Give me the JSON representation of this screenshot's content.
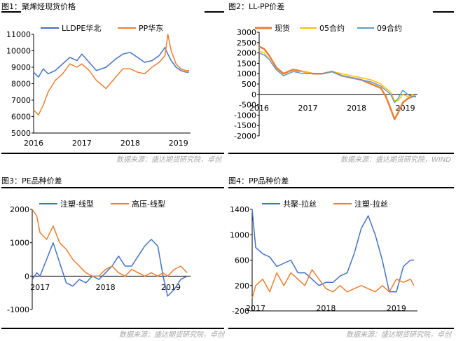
{
  "colors": {
    "blue": "#4472C4",
    "orange": "#ED7D31",
    "lightblue": "#5B9BD5",
    "yellow": "#FFC000",
    "rule": "#000000",
    "source": "#A6A6A6",
    "axis": "#000000"
  },
  "panels": [
    {
      "title": "图1：聚烯烃现货价格",
      "source": "数据来源：盛达期货研究院，卓创",
      "legend": [
        "LLDPE华北",
        "PP华东"
      ],
      "yticks": [
        "11000",
        "10000",
        "9000",
        "8000",
        "7000",
        "6000",
        "5000"
      ],
      "xticks": [
        "2016",
        "2017",
        "2018",
        "2019"
      ]
    },
    {
      "title": "图2：LL-PP价差",
      "source": "数据来源：盛达期货研究院，WIND",
      "legend": [
        "现货",
        "05合约",
        "09合约"
      ],
      "yticks": [
        "3000",
        "2500",
        "2000",
        "1500",
        "1000",
        "500",
        "0",
        "-500",
        "-1000",
        "-1500",
        "-2000"
      ],
      "xticks": [
        "2016",
        "2017",
        "2018",
        "2019"
      ]
    },
    {
      "title": "图3：PE品种价差",
      "source": "数据来源：盛达期货研究院，卓创",
      "legend": [
        "注塑-线型",
        "高压-线型"
      ],
      "yticks": [
        "2000",
        "1000",
        "0",
        "-1000"
      ],
      "xticks": [
        "2017",
        "2018",
        "2019"
      ]
    },
    {
      "title": "图4：PP品种价差",
      "source": "数据来源：盛达期货研究院，卓创",
      "legend": [
        "共聚-拉丝",
        "注塑-拉丝"
      ],
      "yticks": [
        "1400",
        "1000",
        "600",
        "200",
        "-200"
      ],
      "xticks": [
        "2017",
        "2018",
        "2019"
      ]
    }
  ],
  "chart_data": [
    {
      "type": "line",
      "title": "图1：聚烯烃现货价格",
      "ylim": [
        5000,
        11000
      ],
      "xlim": [
        2016.0,
        2019.25
      ],
      "x": [
        2016.0,
        2016.1,
        2016.2,
        2016.3,
        2016.45,
        2016.6,
        2016.75,
        2016.9,
        2017.0,
        2017.15,
        2017.3,
        2017.5,
        2017.7,
        2017.85,
        2018.0,
        2018.15,
        2018.3,
        2018.45,
        2018.6,
        2018.72,
        2018.78,
        2018.85,
        2018.95,
        2019.05,
        2019.15,
        2019.22
      ],
      "series": [
        {
          "name": "LLDPE华北",
          "color": "#4472C4",
          "values": [
            8700,
            8400,
            8900,
            8600,
            8800,
            9200,
            9600,
            9400,
            9800,
            9300,
            8800,
            9000,
            9500,
            9800,
            9900,
            9600,
            9300,
            9400,
            9700,
            10200,
            9800,
            9400,
            9000,
            8800,
            8700,
            8700
          ]
        },
        {
          "name": "PP华东",
          "color": "#ED7D31",
          "values": [
            6400,
            6100,
            6700,
            7500,
            8200,
            8600,
            9200,
            9000,
            9200,
            8800,
            8200,
            7700,
            8400,
            8900,
            8900,
            8700,
            8600,
            9000,
            9300,
            9700,
            11000,
            10000,
            9200,
            8900,
            8800,
            8800
          ]
        }
      ]
    },
    {
      "type": "line",
      "title": "图2：LL-PP价差",
      "ylim": [
        -2000,
        3000
      ],
      "xlim": [
        2016.0,
        2019.25
      ],
      "x": [
        2016.0,
        2016.1,
        2016.2,
        2016.35,
        2016.5,
        2016.7,
        2016.9,
        2017.1,
        2017.3,
        2017.5,
        2017.7,
        2017.9,
        2018.1,
        2018.3,
        2018.5,
        2018.6,
        2018.7,
        2018.78,
        2018.85,
        2018.95,
        2019.05,
        2019.15,
        2019.22
      ],
      "series": [
        {
          "name": "现货",
          "color": "#ED7D31",
          "values": [
            2300,
            2200,
            1900,
            1300,
            1000,
            1200,
            1100,
            1000,
            1000,
            1100,
            900,
            800,
            700,
            500,
            300,
            -100,
            -700,
            -1200,
            -900,
            -400,
            -200,
            -100,
            -100
          ]
        },
        {
          "name": "05合约",
          "color": "#FFC000",
          "values": [
            2100,
            2000,
            1700,
            1200,
            900,
            1100,
            1100,
            1000,
            1000,
            1100,
            1000,
            900,
            800,
            700,
            500,
            300,
            100,
            -300,
            -300,
            0,
            -100,
            0,
            -100
          ]
        },
        {
          "name": "09合约",
          "color": "#5B9BD5",
          "values": [
            2000,
            1900,
            1700,
            1200,
            900,
            1100,
            1000,
            1000,
            1000,
            1100,
            900,
            800,
            700,
            600,
            400,
            200,
            0,
            -400,
            -200,
            200,
            0,
            -100,
            -100
          ]
        }
      ]
    },
    {
      "type": "line",
      "title": "图3：PE品种价差",
      "ylim": [
        -1000,
        2000
      ],
      "xlim": [
        2016.88,
        2019.3
      ],
      "x": [
        2016.88,
        2016.95,
        2017.0,
        2017.1,
        2017.2,
        2017.3,
        2017.4,
        2017.5,
        2017.6,
        2017.7,
        2017.8,
        2017.9,
        2018.0,
        2018.1,
        2018.2,
        2018.3,
        2018.4,
        2018.5,
        2018.6,
        2018.7,
        2018.8,
        2018.88,
        2018.95,
        2019.05,
        2019.15,
        2019.25
      ],
      "series": [
        {
          "name": "注塑-线型",
          "color": "#4472C4",
          "values": [
            -100,
            100,
            0,
            500,
            1000,
            400,
            -200,
            -300,
            -100,
            -200,
            0,
            -100,
            100,
            300,
            600,
            300,
            300,
            600,
            900,
            1100,
            900,
            0,
            -600,
            -400,
            -100,
            0
          ]
        },
        {
          "name": "高压-线型",
          "color": "#ED7D31",
          "values": [
            2000,
            1800,
            1300,
            1100,
            1500,
            1000,
            800,
            500,
            300,
            100,
            0,
            0,
            200,
            300,
            100,
            0,
            200,
            100,
            0,
            100,
            0,
            100,
            0,
            200,
            300,
            100
          ]
        }
      ]
    },
    {
      "type": "line",
      "title": "图4：PP品种价差",
      "ylim": [
        -200,
        1400
      ],
      "xlim": [
        2016.95,
        2019.3
      ],
      "x": [
        2016.95,
        2017.0,
        2017.1,
        2017.2,
        2017.3,
        2017.4,
        2017.5,
        2017.6,
        2017.7,
        2017.8,
        2017.9,
        2018.0,
        2018.1,
        2018.2,
        2018.3,
        2018.4,
        2018.5,
        2018.6,
        2018.7,
        2018.8,
        2018.9,
        2019.0,
        2019.1,
        2019.2,
        2019.25
      ],
      "series": [
        {
          "name": "共聚-拉丝",
          "color": "#4472C4",
          "values": [
            1400,
            800,
            700,
            650,
            500,
            550,
            600,
            400,
            400,
            300,
            200,
            250,
            250,
            350,
            400,
            700,
            1100,
            1300,
            1000,
            600,
            100,
            100,
            500,
            600,
            600
          ]
        },
        {
          "name": "注塑-拉丝",
          "color": "#ED7D31",
          "values": [
            0,
            200,
            300,
            100,
            400,
            200,
            400,
            300,
            200,
            450,
            300,
            150,
            100,
            200,
            100,
            150,
            200,
            150,
            100,
            200,
            100,
            300,
            250,
            300,
            200
          ]
        }
      ]
    }
  ]
}
